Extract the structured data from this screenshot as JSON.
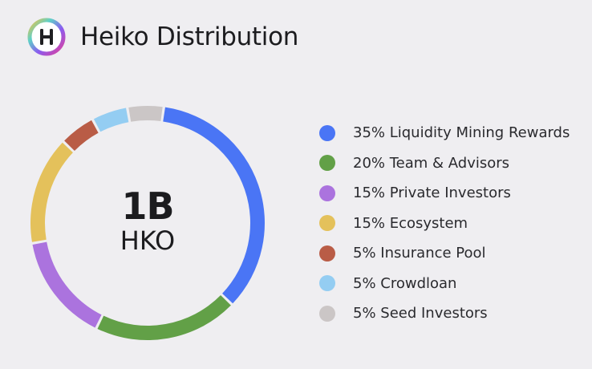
{
  "header": {
    "title": "Heiko Distribution",
    "logo_letter": "H"
  },
  "center": {
    "value": "1B",
    "unit": "HKO"
  },
  "chart_data": {
    "type": "pie",
    "title": "Heiko Distribution",
    "total_label": "1B HKO",
    "slices": [
      {
        "label": "35% Liquidity Mining Rewards",
        "value": 35,
        "color": "#4a75f5"
      },
      {
        "label": "20% Team & Advisors",
        "value": 20,
        "color": "#62a047"
      },
      {
        "label": "15% Private Investors",
        "value": 15,
        "color": "#ab73de"
      },
      {
        "label": "15% Ecosystem",
        "value": 15,
        "color": "#e4c15b"
      },
      {
        "label": "5% Insurance Pool",
        "value": 5,
        "color": "#b95c46"
      },
      {
        "label": "5% Crowdloan",
        "value": 5,
        "color": "#94cdf2"
      },
      {
        "label": "5% Seed Investors",
        "value": 5,
        "color": "#cbc6c6"
      }
    ],
    "legend_position": "right"
  }
}
